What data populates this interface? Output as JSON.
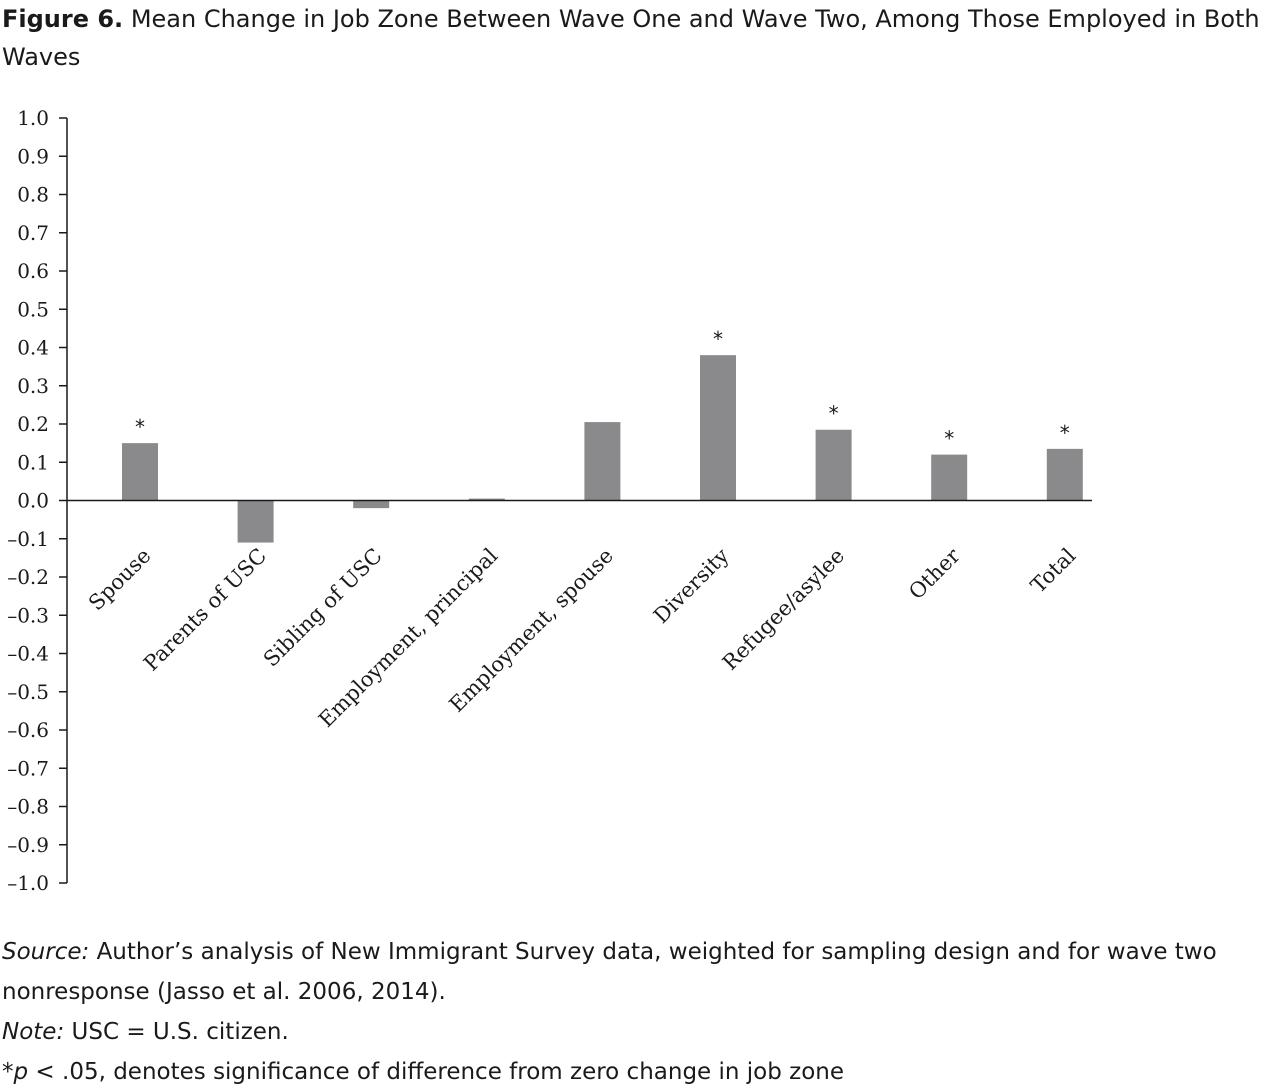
{
  "figure": {
    "label": "Figure 6.",
    "title": "Mean Change in Job Zone Between Wave One and Wave Two, Among Those Employed in Both Waves"
  },
  "notes": {
    "source_label": "Source:",
    "source_text": "Author’s analysis of New Immigrant Survey data, weighted for sampling design and for wave two nonresponse (Jasso et al. 2006, 2014).",
    "note_label": "Note:",
    "note_text": "USC = U.S. citizen.",
    "sig_prefix": "*",
    "sig_p": "p",
    "sig_text": " < .05, denotes significance of difference from zero change in job zone"
  },
  "chart_data": {
    "type": "bar",
    "title": "",
    "xlabel": "",
    "ylabel": "",
    "ylim": [
      -1.0,
      1.0
    ],
    "yticks": [
      "1.0",
      "0.9",
      "0.8",
      "0.7",
      "0.6",
      "0.5",
      "0.4",
      "0.3",
      "0.2",
      "0.1",
      "0.0",
      "–0.1",
      "–0.2",
      "–0.3",
      "–0.4",
      "–0.5",
      "–0.6",
      "–0.7",
      "–0.8",
      "–0.9",
      "–1.0"
    ],
    "categories": [
      "Spouse",
      "Parents of USC",
      "Sibling of USC",
      "Employment, principal",
      "Employment, spouse",
      "Diversity",
      "Refugee/asylee",
      "Other",
      "Total"
    ],
    "values": [
      0.15,
      -0.11,
      -0.02,
      0.005,
      0.205,
      0.38,
      0.185,
      0.12,
      0.135
    ],
    "significant": [
      true,
      false,
      false,
      false,
      false,
      true,
      true,
      true,
      true
    ],
    "significance_marker": "*",
    "bar_color": "#8a8a8c",
    "grid": false
  }
}
